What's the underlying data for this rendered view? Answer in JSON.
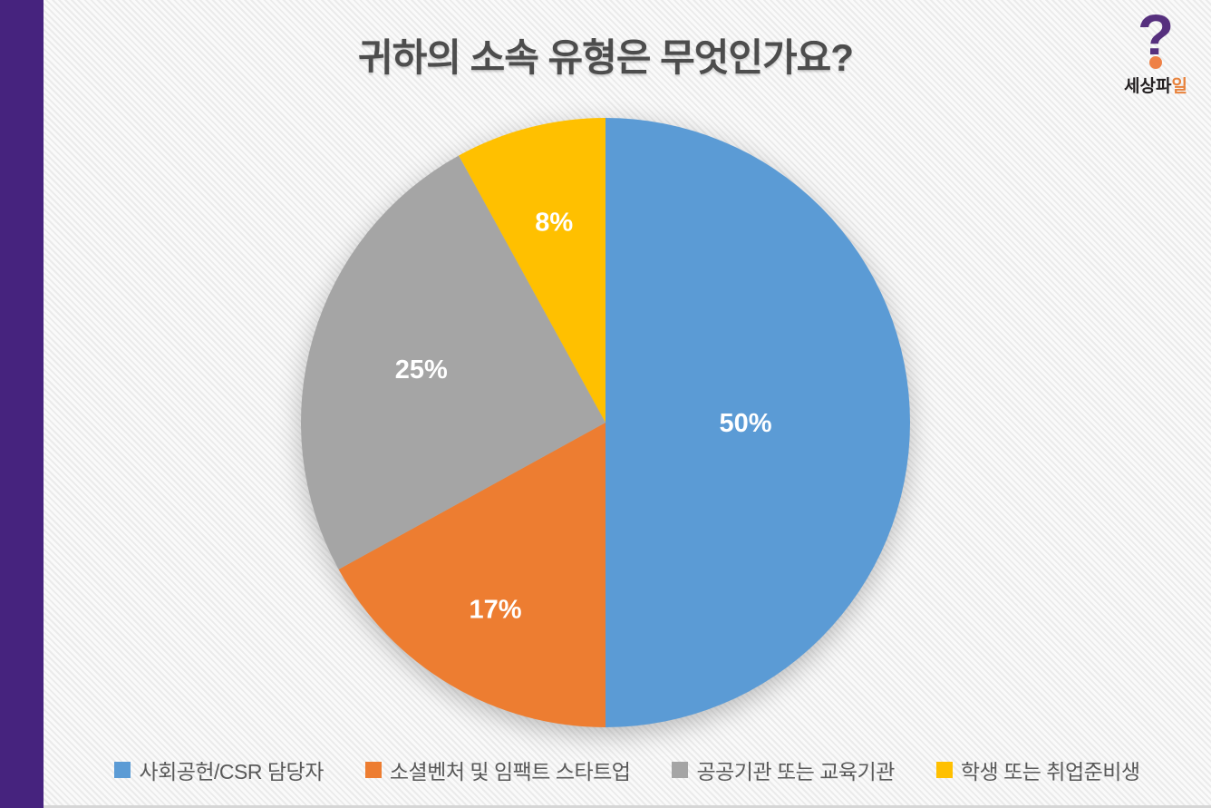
{
  "slide": {
    "title": "귀하의 소속 유형은 무엇인가요?",
    "accent_bar_color": "#46237E",
    "background_color": "#F2F2F2",
    "title_color": "#4D4D4D"
  },
  "logo": {
    "text_dark": "세상파",
    "text_accent": "일",
    "full_name": "세상파일",
    "question_mark_color": "#56307E",
    "dot_color": "#EE8147",
    "accent_text_color": "#E8823C"
  },
  "chart_data": {
    "type": "pie",
    "title": "귀하의 소속 유형은 무엇인가요?",
    "categories": [
      "사회공헌/CSR 담당자",
      "소셜벤처 및 임팩트 스타트업",
      "공공기관 또는 교육기관",
      "학생 또는 취업준비생"
    ],
    "values": [
      50,
      17,
      25,
      8
    ],
    "labels": [
      "50%",
      "17%",
      "25%",
      "8%"
    ],
    "colors": [
      "#5B9BD5",
      "#ED7D31",
      "#A5A5A5",
      "#FFC000"
    ],
    "start_angle_deg": 0,
    "direction": "clockwise",
    "legend_position": "bottom",
    "data_label_color": "#FFFFFF"
  }
}
